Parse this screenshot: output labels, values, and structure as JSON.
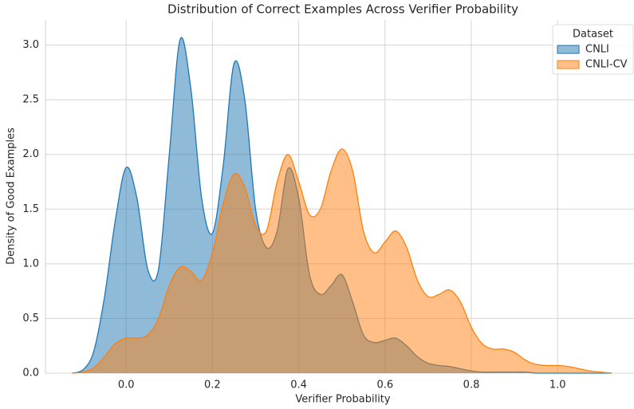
{
  "chart_data": {
    "type": "area",
    "title": "Distribution of Correct Examples Across Verifier Probability",
    "x_label": "Verifier Probability",
    "y_label": "Density of Good Examples",
    "legend_title": "Dataset",
    "legend_position": "upper right",
    "grid": true,
    "x": [
      -0.125,
      -0.1,
      -0.075,
      -0.05,
      -0.025,
      0,
      0.025,
      0.05,
      0.075,
      0.1,
      0.125,
      0.15,
      0.175,
      0.2,
      0.225,
      0.25,
      0.275,
      0.3,
      0.325,
      0.35,
      0.375,
      0.4,
      0.425,
      0.45,
      0.475,
      0.5,
      0.525,
      0.55,
      0.575,
      0.6,
      0.625,
      0.65,
      0.675,
      0.7,
      0.725,
      0.75,
      0.775,
      0.8,
      0.825,
      0.85,
      0.875,
      0.9,
      0.925,
      0.95,
      0.975,
      1.0,
      1.025,
      1.05,
      1.075,
      1.1,
      1.125
    ],
    "series": [
      {
        "name": "CNLI",
        "color": "#1f77b4",
        "values": [
          0,
          0.03,
          0.2,
          0.7,
          1.4,
          1.88,
          1.6,
          0.95,
          0.95,
          2.0,
          3.05,
          2.6,
          1.6,
          1.28,
          1.9,
          2.83,
          2.5,
          1.5,
          1.15,
          1.3,
          1.87,
          1.6,
          0.9,
          0.72,
          0.8,
          0.9,
          0.65,
          0.35,
          0.28,
          0.3,
          0.32,
          0.25,
          0.15,
          0.09,
          0.07,
          0.06,
          0.04,
          0.02,
          0.01,
          0.01,
          0.01,
          0.01,
          0.01,
          0,
          0,
          0,
          0,
          0,
          0,
          0,
          0
        ]
      },
      {
        "name": "CNLI-CV",
        "color": "#ff7f0e",
        "values": [
          0,
          0.01,
          0.05,
          0.15,
          0.27,
          0.32,
          0.32,
          0.35,
          0.5,
          0.8,
          0.97,
          0.93,
          0.85,
          1.1,
          1.55,
          1.82,
          1.7,
          1.35,
          1.3,
          1.75,
          2.0,
          1.75,
          1.45,
          1.5,
          1.85,
          2.05,
          1.85,
          1.3,
          1.1,
          1.2,
          1.3,
          1.15,
          0.85,
          0.7,
          0.72,
          0.76,
          0.65,
          0.42,
          0.27,
          0.22,
          0.22,
          0.19,
          0.12,
          0.08,
          0.07,
          0.07,
          0.06,
          0.04,
          0.02,
          0.01,
          0
        ]
      }
    ],
    "xlim": [
      -0.187,
      1.177
    ],
    "ylim": [
      0,
      3.23
    ],
    "xticks": [
      {
        "value": 0,
        "label": "0.0"
      },
      {
        "value": 0.2,
        "label": "0.2"
      },
      {
        "value": 0.4,
        "label": "0.4"
      },
      {
        "value": 0.6,
        "label": "0.6"
      },
      {
        "value": 0.8,
        "label": "0.8"
      },
      {
        "value": 1,
        "label": "1.0"
      }
    ],
    "yticks": [
      {
        "value": 0,
        "label": "0.0"
      },
      {
        "value": 0.5,
        "label": "0.5"
      },
      {
        "value": 1,
        "label": "1.0"
      },
      {
        "value": 1.5,
        "label": "1.5"
      },
      {
        "value": 2,
        "label": "2.0"
      },
      {
        "value": 2.5,
        "label": "2.5"
      },
      {
        "value": 3,
        "label": "3.0"
      }
    ]
  }
}
